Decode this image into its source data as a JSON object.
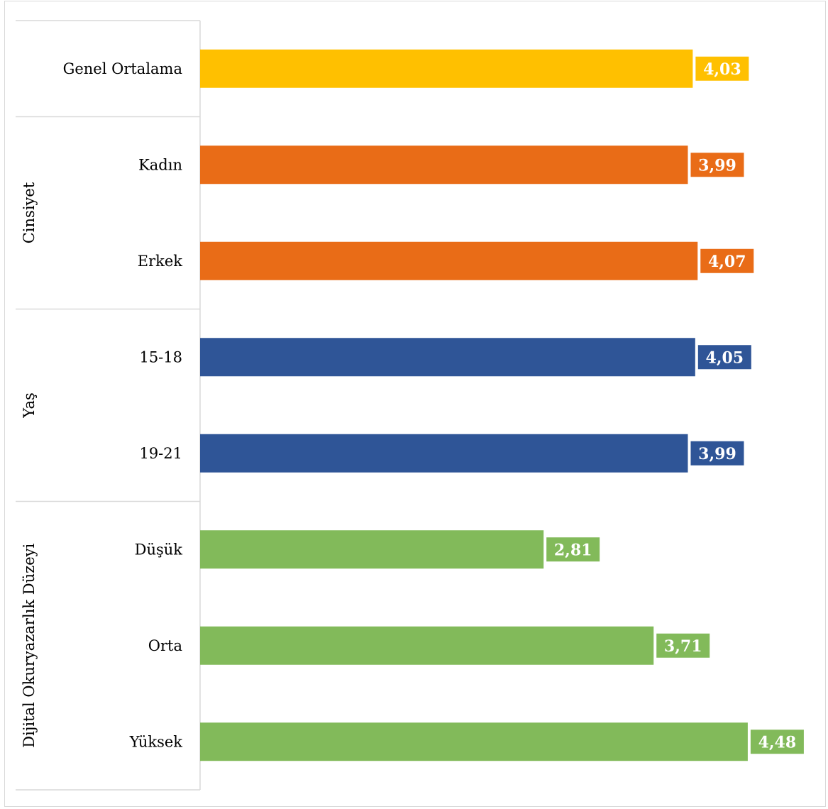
{
  "chart_data": {
    "type": "bar",
    "orientation": "horizontal",
    "categories": [
      "Genel Ortalama",
      "Kadın",
      "Erkek",
      "15-18",
      "19-21",
      "Düşük",
      "Orta",
      "Yüksek"
    ],
    "values": [
      4.03,
      3.99,
      4.07,
      4.05,
      3.99,
      2.81,
      3.71,
      4.48
    ],
    "value_labels": [
      "4,03",
      "3,99",
      "4,07",
      "4,05",
      "3,99",
      "2,81",
      "3,71",
      "4,48"
    ],
    "groups": [
      {
        "label": "",
        "categories": [
          "Genel Ortalama"
        ]
      },
      {
        "label": "Cinsiyet",
        "categories": [
          "Kadın",
          "Erkek"
        ]
      },
      {
        "label": "Yaş",
        "categories": [
          "15-18",
          "19-21"
        ]
      },
      {
        "label": "Dijital Okuryazarlık Düzeyi",
        "categories": [
          "Düşük",
          "Orta",
          "Yüksek"
        ]
      }
    ],
    "colors": [
      "#FFC000",
      "#E96C17",
      "#E96C17",
      "#2F5597",
      "#2F5597",
      "#82BA5A",
      "#82BA5A",
      "#82BA5A"
    ],
    "xlim": [
      0,
      5
    ],
    "grid": false,
    "legend": "none",
    "title": ""
  }
}
